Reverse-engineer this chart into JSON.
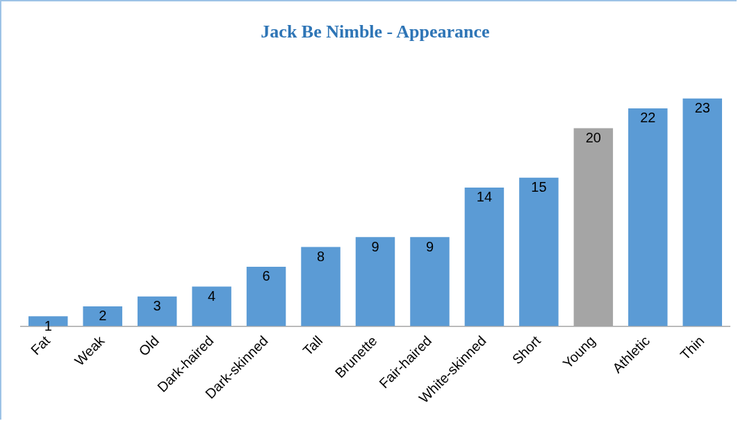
{
  "chart_data": {
    "type": "bar",
    "title": "Jack Be Nimble - Appearance",
    "categories": [
      "Fat",
      "Weak",
      "Old",
      "Dark-haired",
      "Dark-skinned",
      "Tall",
      "Brunette",
      "Fair-haired",
      "White-skinned",
      "Short",
      "Young",
      "Athletic",
      "Thin"
    ],
    "values": [
      1,
      2,
      3,
      4,
      6,
      8,
      9,
      9,
      14,
      15,
      20,
      22,
      23
    ],
    "colors": [
      "#5b9bd5",
      "#5b9bd5",
      "#5b9bd5",
      "#5b9bd5",
      "#5b9bd5",
      "#5b9bd5",
      "#5b9bd5",
      "#5b9bd5",
      "#5b9bd5",
      "#5b9bd5",
      "#a5a5a5",
      "#5b9bd5",
      "#5b9bd5"
    ],
    "data_labels": true,
    "grid": false,
    "legend": false
  }
}
